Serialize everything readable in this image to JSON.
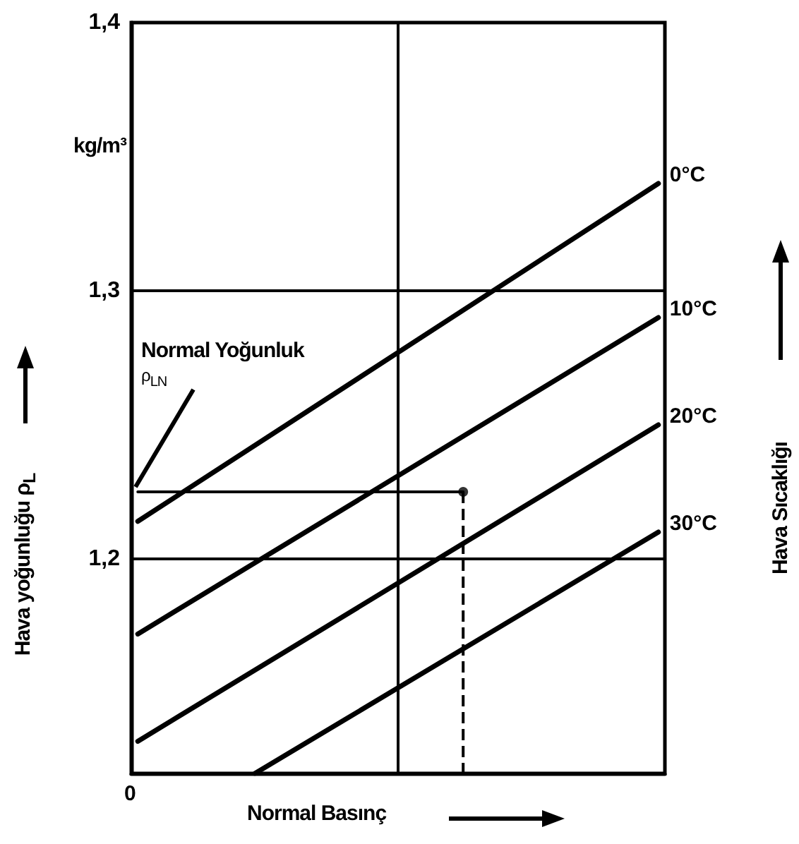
{
  "chart_data": {
    "type": "line",
    "xlabel": "Normal Basınç",
    "ylabel": "Hava yoğunluğu   ρ$_{L}$",
    "categories": [
      null,
      null,
      null,
      null,
      null,
      null,
      null,
      null,
      null,
      null,
      null,
      null,
      null,
      null,
      null,
      null,
      null,
      null,
      null,
      null,
      null,
      null,
      null,
      null,
      null,
      null,
      null,
      null,
      null,
      null,
      null,
      null,
      null,
      null,
      null,
      null,
      null,
      null,
      null,
      null,
      null
    ],
    "ylim": [
      1.12,
      1.4
    ],
    "yticks": [
      {
        "value": 1.2,
        "label": "1,2"
      },
      {
        "value": 1.3,
        "label": "1,3"
      },
      {
        "value": 1.4,
        "label": "1,4"
      }
    ],
    "tick_labels": "y",
    "line_style": "solid",
    "legend": false,
    "ref_lines": [
      {
        "axis": "y",
        "value": 1.2,
        "color": "#000000"
      },
      {
        "axis": "y",
        "value": 1.3,
        "color": "#000000"
      }
    ],
    "series": [
      {
        "name": "0°C",
        "color": "#000000",
        "values": [
          1.214,
          null,
          null,
          null,
          null,
          null,
          null,
          null,
          null,
          null,
          null,
          null,
          null,
          null,
          null,
          null,
          null,
          null,
          null,
          null,
          null,
          null,
          null,
          null,
          null,
          null,
          null,
          null,
          null,
          null,
          null,
          null,
          null,
          null,
          null,
          null,
          null,
          null,
          null,
          null,
          1.34
        ]
      },
      {
        "name": "10°C",
        "color": "#000000",
        "values": [
          1.172,
          null,
          null,
          null,
          null,
          null,
          null,
          null,
          null,
          null,
          null,
          null,
          null,
          null,
          null,
          null,
          null,
          null,
          null,
          null,
          null,
          null,
          null,
          null,
          null,
          null,
          null,
          null,
          null,
          null,
          null,
          null,
          null,
          null,
          null,
          null,
          null,
          null,
          null,
          null,
          1.29
        ]
      },
      {
        "name": "20°C",
        "color": "#000000",
        "values": [
          1.132,
          null,
          null,
          null,
          null,
          null,
          null,
          null,
          null,
          null,
          null,
          null,
          null,
          null,
          null,
          null,
          null,
          null,
          null,
          null,
          null,
          null,
          null,
          null,
          null,
          null,
          null,
          null,
          null,
          null,
          null,
          null,
          null,
          null,
          null,
          null,
          null,
          null,
          null,
          null,
          1.25
        ]
      },
      {
        "name": "30°C",
        "color": "#000000",
        "values": [
          null,
          null,
          null,
          null,
          null,
          null,
          null,
          null,
          null,
          1.12,
          null,
          null,
          null,
          null,
          null,
          null,
          null,
          null,
          null,
          null,
          null,
          null,
          null,
          null,
          null,
          null,
          null,
          null,
          null,
          null,
          null,
          null,
          null,
          null,
          null,
          null,
          null,
          null,
          null,
          null,
          1.21
        ]
      },
      {
        "color": "#000000",
        "values": [
          1.225,
          null,
          null,
          null,
          null,
          null,
          null,
          null,
          null,
          null,
          null,
          null,
          null,
          null,
          null,
          null,
          null,
          null,
          null,
          null,
          null,
          null,
          null,
          null,
          null,
          1.225,
          null,
          null,
          null,
          null,
          null,
          null,
          null,
          null,
          null,
          null,
          null,
          null,
          null,
          null,
          null
        ]
      },
      {
        "type": "scatter",
        "color": "#000000",
        "marker": "circle",
        "values": [
          null,
          null,
          null,
          null,
          null,
          null,
          null,
          null,
          null,
          null,
          null,
          null,
          null,
          null,
          null,
          null,
          null,
          null,
          null,
          null,
          null,
          null,
          null,
          null,
          null,
          1.225,
          null,
          null,
          null,
          null,
          null,
          null,
          null,
          null,
          null,
          null,
          null,
          null,
          null,
          null,
          null
        ]
      }
    ],
    "annotations": [
      "kg/m³",
      "Hava Sıcaklığı",
      "Normal Yoğunluk\nρ$_{LN}$",
      "0"
    ]
  }
}
